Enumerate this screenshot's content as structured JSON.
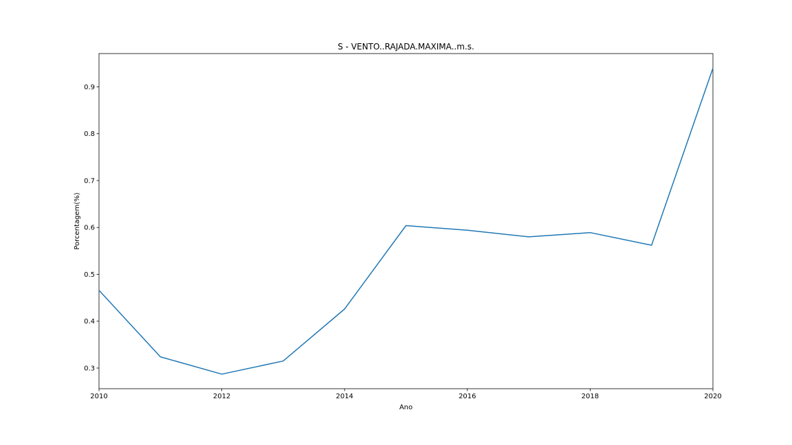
{
  "chart_data": {
    "type": "line",
    "title": "S - VENTO..RAJADA.MAXIMA..m.s.",
    "xlabel": "Ano",
    "ylabel": "Porcentagem(%)",
    "xlim": [
      2010,
      2020
    ],
    "ylim": [
      0.256,
      0.971
    ],
    "xticks": [
      2010,
      2012,
      2014,
      2016,
      2018,
      2020
    ],
    "yticks": [
      0.3,
      0.4,
      0.5,
      0.6,
      0.7,
      0.8,
      0.9
    ],
    "grid": false,
    "line_color": "#1f77b4",
    "series": [
      {
        "x": [
          2010,
          2011,
          2012,
          2013,
          2014,
          2015,
          2016,
          2017,
          2018,
          2019,
          2020
        ],
        "values": [
          0.466,
          0.324,
          0.287,
          0.315,
          0.426,
          0.604,
          0.594,
          0.58,
          0.589,
          0.562,
          0.94
        ]
      }
    ]
  }
}
